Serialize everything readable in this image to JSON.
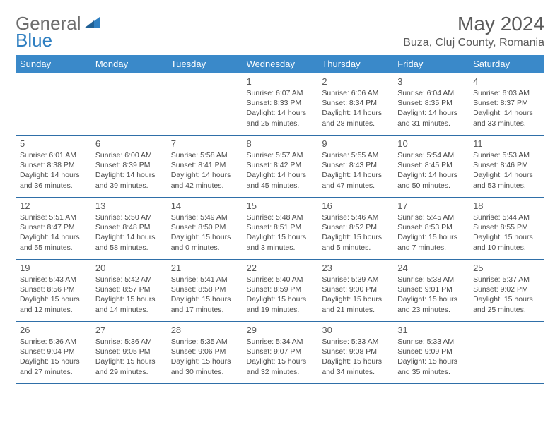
{
  "brand": {
    "text1": "General",
    "text2": "Blue"
  },
  "header": {
    "month_title": "May 2024",
    "location": "Buza, Cluj County, Romania"
  },
  "colors": {
    "header_bg": "#3a89c9",
    "header_text": "#ffffff",
    "border": "#2f6fa8",
    "text_gray": "#5a5a5a",
    "brand_gray": "#6d6d6d",
    "brand_blue": "#2f7fc1"
  },
  "weekdays": [
    "Sunday",
    "Monday",
    "Tuesday",
    "Wednesday",
    "Thursday",
    "Friday",
    "Saturday"
  ],
  "weeks": [
    [
      null,
      null,
      null,
      {
        "n": "1",
        "r": "6:07 AM",
        "s": "8:33 PM",
        "d": "14 hours and 25 minutes."
      },
      {
        "n": "2",
        "r": "6:06 AM",
        "s": "8:34 PM",
        "d": "14 hours and 28 minutes."
      },
      {
        "n": "3",
        "r": "6:04 AM",
        "s": "8:35 PM",
        "d": "14 hours and 31 minutes."
      },
      {
        "n": "4",
        "r": "6:03 AM",
        "s": "8:37 PM",
        "d": "14 hours and 33 minutes."
      }
    ],
    [
      {
        "n": "5",
        "r": "6:01 AM",
        "s": "8:38 PM",
        "d": "14 hours and 36 minutes."
      },
      {
        "n": "6",
        "r": "6:00 AM",
        "s": "8:39 PM",
        "d": "14 hours and 39 minutes."
      },
      {
        "n": "7",
        "r": "5:58 AM",
        "s": "8:41 PM",
        "d": "14 hours and 42 minutes."
      },
      {
        "n": "8",
        "r": "5:57 AM",
        "s": "8:42 PM",
        "d": "14 hours and 45 minutes."
      },
      {
        "n": "9",
        "r": "5:55 AM",
        "s": "8:43 PM",
        "d": "14 hours and 47 minutes."
      },
      {
        "n": "10",
        "r": "5:54 AM",
        "s": "8:45 PM",
        "d": "14 hours and 50 minutes."
      },
      {
        "n": "11",
        "r": "5:53 AM",
        "s": "8:46 PM",
        "d": "14 hours and 53 minutes."
      }
    ],
    [
      {
        "n": "12",
        "r": "5:51 AM",
        "s": "8:47 PM",
        "d": "14 hours and 55 minutes."
      },
      {
        "n": "13",
        "r": "5:50 AM",
        "s": "8:48 PM",
        "d": "14 hours and 58 minutes."
      },
      {
        "n": "14",
        "r": "5:49 AM",
        "s": "8:50 PM",
        "d": "15 hours and 0 minutes."
      },
      {
        "n": "15",
        "r": "5:48 AM",
        "s": "8:51 PM",
        "d": "15 hours and 3 minutes."
      },
      {
        "n": "16",
        "r": "5:46 AM",
        "s": "8:52 PM",
        "d": "15 hours and 5 minutes."
      },
      {
        "n": "17",
        "r": "5:45 AM",
        "s": "8:53 PM",
        "d": "15 hours and 7 minutes."
      },
      {
        "n": "18",
        "r": "5:44 AM",
        "s": "8:55 PM",
        "d": "15 hours and 10 minutes."
      }
    ],
    [
      {
        "n": "19",
        "r": "5:43 AM",
        "s": "8:56 PM",
        "d": "15 hours and 12 minutes."
      },
      {
        "n": "20",
        "r": "5:42 AM",
        "s": "8:57 PM",
        "d": "15 hours and 14 minutes."
      },
      {
        "n": "21",
        "r": "5:41 AM",
        "s": "8:58 PM",
        "d": "15 hours and 17 minutes."
      },
      {
        "n": "22",
        "r": "5:40 AM",
        "s": "8:59 PM",
        "d": "15 hours and 19 minutes."
      },
      {
        "n": "23",
        "r": "5:39 AM",
        "s": "9:00 PM",
        "d": "15 hours and 21 minutes."
      },
      {
        "n": "24",
        "r": "5:38 AM",
        "s": "9:01 PM",
        "d": "15 hours and 23 minutes."
      },
      {
        "n": "25",
        "r": "5:37 AM",
        "s": "9:02 PM",
        "d": "15 hours and 25 minutes."
      }
    ],
    [
      {
        "n": "26",
        "r": "5:36 AM",
        "s": "9:04 PM",
        "d": "15 hours and 27 minutes."
      },
      {
        "n": "27",
        "r": "5:36 AM",
        "s": "9:05 PM",
        "d": "15 hours and 29 minutes."
      },
      {
        "n": "28",
        "r": "5:35 AM",
        "s": "9:06 PM",
        "d": "15 hours and 30 minutes."
      },
      {
        "n": "29",
        "r": "5:34 AM",
        "s": "9:07 PM",
        "d": "15 hours and 32 minutes."
      },
      {
        "n": "30",
        "r": "5:33 AM",
        "s": "9:08 PM",
        "d": "15 hours and 34 minutes."
      },
      {
        "n": "31",
        "r": "5:33 AM",
        "s": "9:09 PM",
        "d": "15 hours and 35 minutes."
      },
      null
    ]
  ],
  "labels": {
    "sunrise": "Sunrise:",
    "sunset": "Sunset:",
    "daylight": "Daylight:"
  }
}
